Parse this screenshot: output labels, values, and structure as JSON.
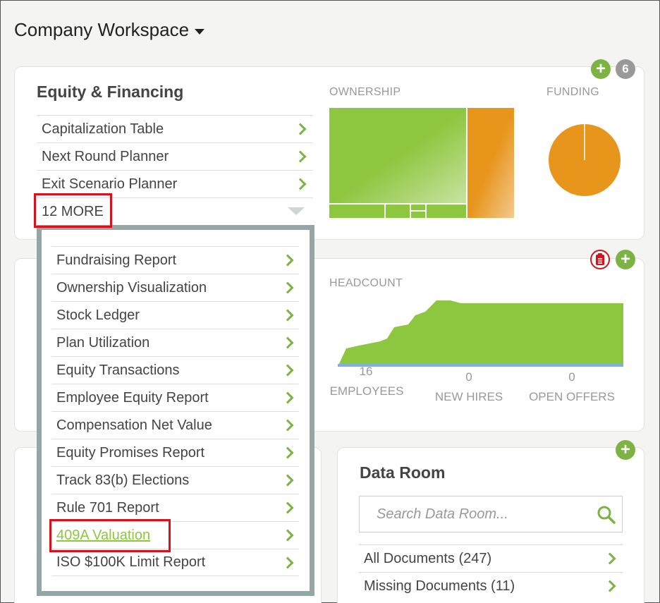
{
  "header": {
    "title": "Company Workspace"
  },
  "equity_card": {
    "title": "Equity & Financing",
    "items": [
      {
        "label": "Capitalization Table"
      },
      {
        "label": "Next Round Planner"
      },
      {
        "label": "Exit Scenario Planner"
      }
    ],
    "more_label": "12 MORE",
    "ownership_label": "OWNERSHIP",
    "funding_label": "FUNDING",
    "notification_count": "6",
    "colors": {
      "green": "#8dc63f",
      "orange": "#e8951c"
    }
  },
  "dropdown": {
    "items": [
      {
        "label": "Fundraising Report"
      },
      {
        "label": "Ownership Visualization"
      },
      {
        "label": "Stock Ledger"
      },
      {
        "label": "Plan Utilization"
      },
      {
        "label": "Equity Transactions"
      },
      {
        "label": "Employee Equity Report"
      },
      {
        "label": "Compensation Net Value"
      },
      {
        "label": "Equity Promises Report"
      },
      {
        "label": "Track 83(b) Elections"
      },
      {
        "label": "Rule 701 Report"
      },
      {
        "label": "409A Valuation"
      },
      {
        "label": "ISO $100K Limit Report"
      }
    ]
  },
  "people_card": {
    "headcount_label": "HEADCOUNT",
    "stats": [
      {
        "value": "16",
        "label": "EMPLOYEES"
      },
      {
        "value": "0",
        "label": "NEW HIRES"
      },
      {
        "value": "0",
        "label": "OPEN OFFERS"
      }
    ]
  },
  "data_room": {
    "title": "Data Room",
    "search_placeholder": "Search Data Room...",
    "items": [
      {
        "label": "All Documents (247)"
      },
      {
        "label": "Missing Documents (11)"
      }
    ]
  }
}
